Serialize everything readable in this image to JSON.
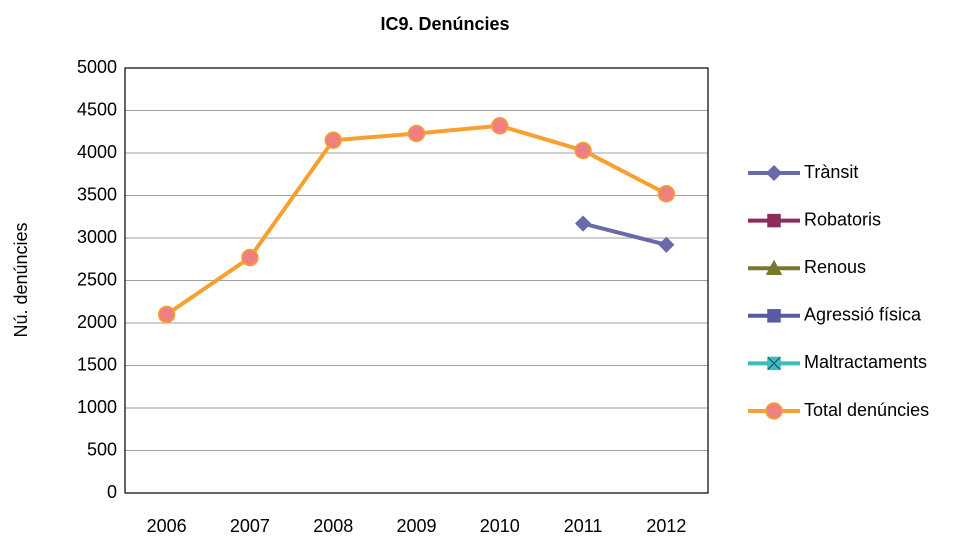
{
  "chart_data": {
    "type": "line",
    "title": "IC9. Denúncies",
    "ylabel": "Nú. denúncies",
    "categories": [
      "2006",
      "2007",
      "2008",
      "2009",
      "2010",
      "2011",
      "2012"
    ],
    "series": [
      {
        "name": "Trànsit",
        "color": "#6a6aa8",
        "marker": "diamond",
        "values": [
          null,
          null,
          null,
          null,
          null,
          3170,
          2920
        ]
      },
      {
        "name": "Robatoris",
        "color": "#8c2b5c",
        "marker": "square",
        "values": [
          null,
          null,
          null,
          null,
          null,
          null,
          null
        ]
      },
      {
        "name": "Renous",
        "color": "#76782e",
        "marker": "triangle",
        "values": [
          null,
          null,
          null,
          null,
          null,
          null,
          null
        ]
      },
      {
        "name": "Agressió física",
        "color": "#5a5aa4",
        "marker": "square",
        "values": [
          null,
          null,
          null,
          null,
          null,
          null,
          null
        ]
      },
      {
        "name": "Maltractaments",
        "color": "#3cbcbc",
        "marker": "xsquare",
        "values": [
          null,
          null,
          null,
          null,
          null,
          null,
          null
        ]
      },
      {
        "name": "Total denúncies",
        "color": "#f7a030",
        "marker": "circle",
        "marker_color": "#f08080",
        "values": [
          2100,
          2770,
          4150,
          4230,
          4320,
          4030,
          3520
        ]
      }
    ],
    "ylim": [
      0,
      5000
    ],
    "yticks": [
      0,
      500,
      1000,
      1500,
      2000,
      2500,
      3000,
      3500,
      4000,
      4500,
      5000
    ],
    "grid": true,
    "legend": "right"
  }
}
